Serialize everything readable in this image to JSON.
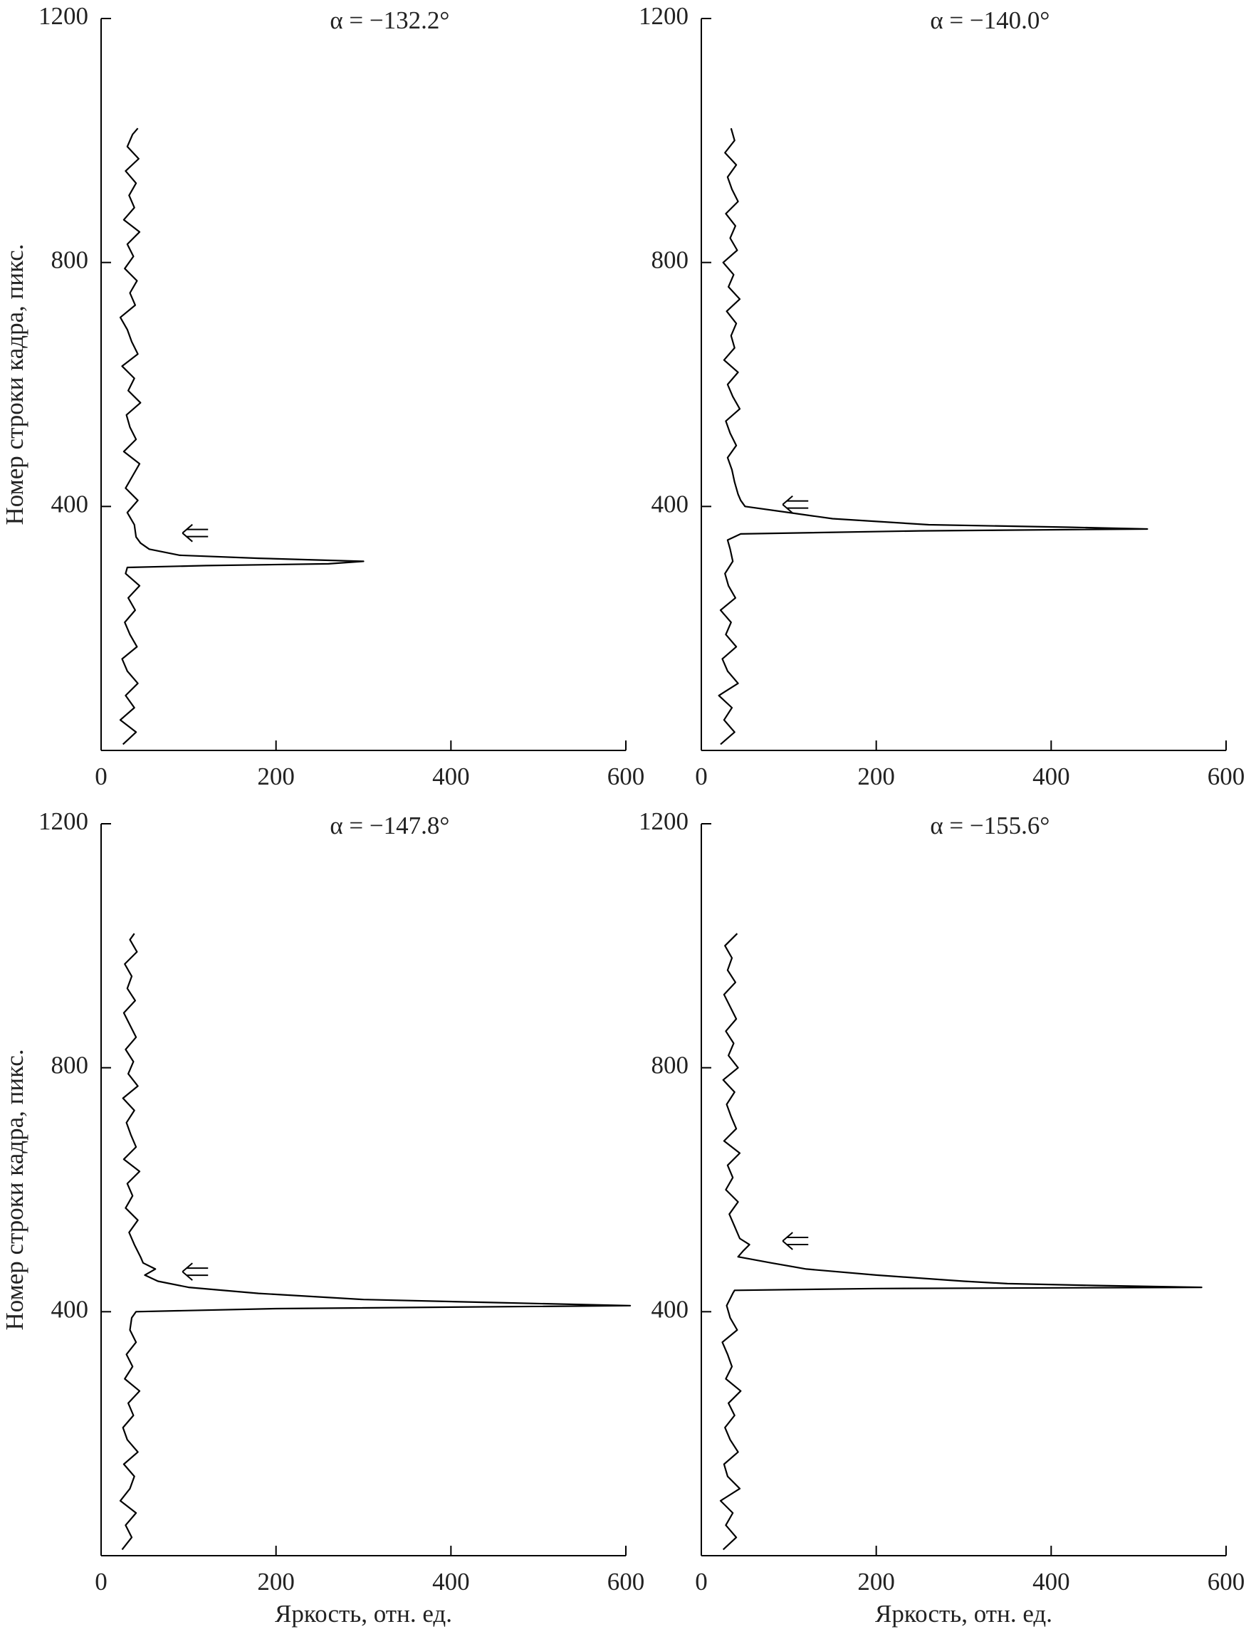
{
  "chart_data": [
    {
      "type": "line",
      "title": "α = −132.2°",
      "y_label": "Номер строки кадра, пикс.",
      "color": "#000000",
      "xlim": [
        0,
        600
      ],
      "ylim": [
        0,
        1200
      ],
      "xticks": [
        0,
        200,
        400,
        600
      ],
      "yticks": [
        400,
        800,
        1200
      ],
      "y": [
        10,
        30,
        50,
        70,
        90,
        110,
        130,
        150,
        170,
        190,
        210,
        230,
        250,
        270,
        290,
        300,
        303,
        306,
        310,
        315,
        320,
        330,
        340,
        350,
        370,
        390,
        410,
        430,
        450,
        470,
        490,
        510,
        530,
        550,
        570,
        590,
        610,
        630,
        650,
        670,
        690,
        710,
        730,
        750,
        770,
        790,
        810,
        830,
        850,
        870,
        890,
        910,
        930,
        950,
        970,
        990,
        1010,
        1020
      ],
      "x": [
        25,
        40,
        22,
        38,
        28,
        42,
        30,
        24,
        41,
        33,
        27,
        39,
        31,
        44,
        28,
        30,
        120,
        260,
        300,
        180,
        90,
        55,
        45,
        40,
        38,
        30,
        42,
        28,
        36,
        44,
        26,
        40,
        33,
        29,
        45,
        31,
        38,
        24,
        42,
        35,
        30,
        22,
        39,
        33,
        41,
        27,
        37,
        30,
        44,
        26,
        38,
        32,
        40,
        28,
        43,
        30,
        36,
        42
      ]
    },
    {
      "type": "line",
      "title": "α = −140.0°",
      "color": "#000000",
      "xlim": [
        0,
        600
      ],
      "ylim": [
        0,
        1200
      ],
      "xticks": [
        0,
        200,
        400,
        600
      ],
      "yticks": [
        400,
        800,
        1200
      ],
      "y": [
        10,
        30,
        50,
        70,
        90,
        110,
        130,
        150,
        170,
        190,
        210,
        230,
        250,
        270,
        290,
        310,
        330,
        345,
        355,
        360,
        363,
        366,
        370,
        380,
        390,
        400,
        410,
        420,
        440,
        460,
        480,
        500,
        520,
        540,
        560,
        580,
        600,
        620,
        640,
        660,
        680,
        700,
        720,
        740,
        760,
        780,
        800,
        820,
        840,
        860,
        880,
        900,
        920,
        940,
        960,
        980,
        1000,
        1020
      ],
      "x": [
        22,
        38,
        26,
        35,
        20,
        42,
        30,
        24,
        40,
        28,
        34,
        22,
        39,
        31,
        27,
        36,
        33,
        30,
        45,
        250,
        510,
        420,
        260,
        150,
        100,
        50,
        45,
        42,
        38,
        35,
        30,
        40,
        33,
        28,
        44,
        36,
        30,
        42,
        26,
        38,
        34,
        40,
        29,
        44,
        31,
        37,
        25,
        41,
        33,
        39,
        28,
        42,
        35,
        30,
        40,
        27,
        38,
        34
      ]
    },
    {
      "type": "line",
      "title": "α = −147.8°",
      "y_label": "Номер строки кадра, пикс.",
      "x_label": "Яркость, отн. ед.",
      "color": "#000000",
      "xlim": [
        0,
        600
      ],
      "ylim": [
        0,
        1200
      ],
      "xticks": [
        0,
        200,
        400,
        600
      ],
      "yticks": [
        400,
        800,
        1200
      ],
      "y": [
        10,
        30,
        50,
        70,
        90,
        110,
        130,
        150,
        170,
        190,
        210,
        230,
        250,
        270,
        290,
        310,
        330,
        350,
        370,
        390,
        400,
        405,
        410,
        415,
        420,
        430,
        440,
        450,
        460,
        470,
        480,
        490,
        510,
        530,
        550,
        570,
        590,
        610,
        630,
        650,
        670,
        690,
        710,
        730,
        750,
        770,
        790,
        810,
        830,
        850,
        870,
        890,
        910,
        930,
        950,
        970,
        990,
        1010,
        1020
      ],
      "x": [
        24,
        35,
        28,
        40,
        22,
        33,
        38,
        26,
        42,
        30,
        25,
        37,
        31,
        44,
        27,
        36,
        29,
        40,
        33,
        35,
        40,
        200,
        605,
        450,
        300,
        180,
        100,
        65,
        50,
        62,
        48,
        45,
        38,
        32,
        42,
        28,
        36,
        30,
        44,
        26,
        40,
        34,
        29,
        38,
        25,
        42,
        31,
        37,
        28,
        40,
        33,
        26,
        39,
        30,
        35,
        27,
        41,
        33,
        38
      ]
    },
    {
      "type": "line",
      "title": "α = −155.6°",
      "x_label": "Яркость, отн. ед.",
      "color": "#000000",
      "xlim": [
        0,
        600
      ],
      "ylim": [
        0,
        1200
      ],
      "xticks": [
        0,
        200,
        400,
        600
      ],
      "yticks": [
        400,
        800,
        1200
      ],
      "y": [
        10,
        30,
        50,
        70,
        90,
        110,
        130,
        150,
        170,
        190,
        210,
        230,
        250,
        270,
        290,
        310,
        330,
        350,
        370,
        390,
        410,
        430,
        435,
        438,
        440,
        443,
        446,
        450,
        460,
        470,
        480,
        490,
        500,
        510,
        520,
        540,
        560,
        580,
        600,
        620,
        640,
        660,
        680,
        700,
        720,
        740,
        760,
        780,
        800,
        820,
        840,
        860,
        880,
        900,
        920,
        940,
        960,
        980,
        1000,
        1020
      ],
      "x": [
        25,
        40,
        28,
        36,
        22,
        44,
        30,
        26,
        42,
        33,
        27,
        38,
        31,
        45,
        28,
        35,
        30,
        24,
        41,
        33,
        29,
        36,
        38,
        200,
        572,
        450,
        350,
        300,
        200,
        120,
        80,
        42,
        48,
        55,
        44,
        38,
        32,
        42,
        28,
        36,
        30,
        44,
        26,
        40,
        34,
        29,
        38,
        25,
        42,
        31,
        37,
        28,
        40,
        33,
        26,
        39,
        30,
        35,
        27,
        41
      ]
    }
  ]
}
